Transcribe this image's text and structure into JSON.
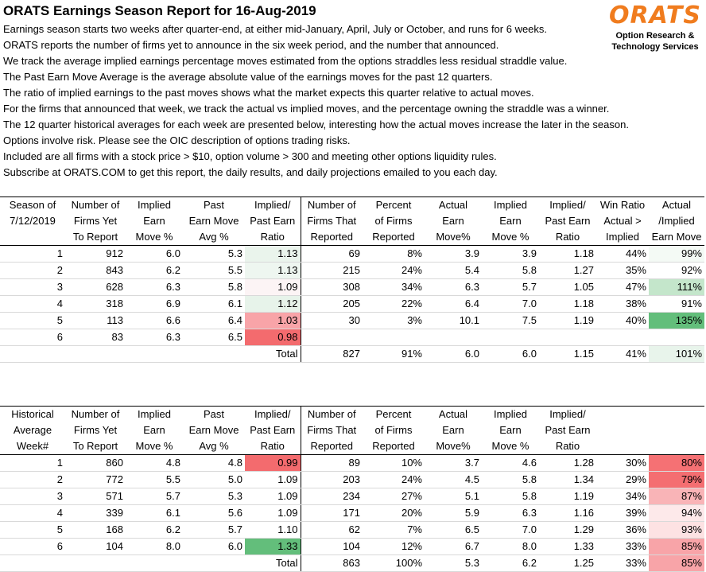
{
  "report": {
    "title": "ORATS Earnings Season Report for 16-Aug-2019",
    "intro": [
      "Earnings season starts two weeks after quarter-end, at either mid-January, April, July or October, and runs for 6 weeks.",
      "ORATS reports the number of firms yet to announce in the six week period, and the number that announced.",
      "We track the average implied earnings percentage moves estimated from the options straddles less residual straddle value.",
      "The Past Earn Move Average is the average absolute value of the earnings moves for the past 12 quarters.",
      "The ratio of implied earnings to the past moves shows what the market expects this quarter relative to actual moves.",
      "For the firms that announced that week, we track the actual vs implied moves, and the percentage owning the straddle was a winner.",
      "The 12 quarter historical averages for each week are presented below, interesting how the actual moves increase the later in the season.",
      "Options involve risk. Please see the OIC description of options trading risks.",
      "Included are all firms with a stock price > $10, option volume > 300 and meeting other options liquidity rules.",
      "Subscribe at ORATS.COM to get this report, the daily results, and daily projections emailed to you each day."
    ]
  },
  "logo": {
    "word": "ORATS",
    "line1": "Option Research &",
    "line2": "Technology Services",
    "color": "#f07c1e"
  },
  "season_table": {
    "headers": [
      [
        "Season of",
        "Number of",
        "Implied",
        "Past",
        "Implied/",
        "Number of",
        "Percent",
        "Actual",
        "Implied",
        "Implied/",
        "Win Ratio",
        "Actual"
      ],
      [
        "7/12/2019",
        "Firms Yet",
        "Earn",
        "Earn Move",
        "Past Earn",
        "Firms That",
        "of Firms",
        "Earn",
        "Earn",
        "Past Earn",
        "Actual >",
        "/Implied"
      ],
      [
        "",
        "To Report",
        "Move %",
        "Avg %",
        "Ratio",
        "Reported",
        "Reported",
        "Move%",
        "Move %",
        "Ratio",
        "Implied",
        "Earn Move"
      ]
    ],
    "rows": [
      [
        "1",
        "912",
        "6.0",
        "5.3",
        "1.13",
        "69",
        "8%",
        "3.9",
        "3.9",
        "1.18",
        "44%",
        "99%"
      ],
      [
        "2",
        "843",
        "6.2",
        "5.5",
        "1.13",
        "215",
        "24%",
        "5.4",
        "5.8",
        "1.27",
        "35%",
        "92%"
      ],
      [
        "3",
        "628",
        "6.3",
        "5.8",
        "1.09",
        "308",
        "34%",
        "6.3",
        "5.7",
        "1.05",
        "47%",
        "111%"
      ],
      [
        "4",
        "318",
        "6.9",
        "6.1",
        "1.12",
        "205",
        "22%",
        "6.4",
        "7.0",
        "1.18",
        "38%",
        "91%"
      ],
      [
        "5",
        "113",
        "6.6",
        "6.4",
        "1.03",
        "30",
        "3%",
        "10.1",
        "7.5",
        "1.19",
        "40%",
        "135%"
      ],
      [
        "6",
        "83",
        "6.3",
        "6.5",
        "0.98",
        "",
        "",
        "",
        "",
        "",
        "",
        ""
      ],
      [
        "",
        "",
        "",
        "",
        "Total",
        "827",
        "91%",
        "6.0",
        "6.0",
        "1.15",
        "41%",
        "101%"
      ]
    ],
    "ratio_colors": [
      "#eaf4ec",
      "#eef6f0",
      "#fcf4f5",
      "#e7f3ea",
      "#f8a4a8",
      "#f36b6e"
    ],
    "actual_colors": [
      "#f4faf5",
      "#ffffff",
      "#c4e6cb",
      "#ffffff",
      "#63be7b",
      "",
      "#e8f4eb"
    ]
  },
  "historical_table": {
    "headers": [
      [
        "Historical",
        "Number of",
        "Implied",
        "Past",
        "Implied/",
        "Number of",
        "Percent",
        "Actual",
        "Implied",
        "Implied/",
        "",
        ""
      ],
      [
        "Average",
        "Firms Yet",
        "Earn",
        "Earn Move",
        "Past Earn",
        "Firms That",
        "of Firms",
        "Earn",
        "Earn",
        "Past Earn",
        "",
        ""
      ],
      [
        "Week#",
        "To Report",
        "Move %",
        "Avg %",
        "Ratio",
        "Reported",
        "Reported",
        "Move%",
        "Move %",
        "Ratio",
        "",
        ""
      ]
    ],
    "rows": [
      [
        "1",
        "860",
        "4.8",
        "4.8",
        "0.99",
        "89",
        "10%",
        "3.7",
        "4.6",
        "1.28",
        "30%",
        "80%"
      ],
      [
        "2",
        "772",
        "5.5",
        "5.0",
        "1.09",
        "203",
        "24%",
        "4.5",
        "5.8",
        "1.34",
        "29%",
        "79%"
      ],
      [
        "3",
        "571",
        "5.7",
        "5.3",
        "1.09",
        "234",
        "27%",
        "5.1",
        "5.8",
        "1.19",
        "34%",
        "87%"
      ],
      [
        "4",
        "339",
        "6.1",
        "5.6",
        "1.09",
        "171",
        "20%",
        "5.9",
        "6.3",
        "1.16",
        "39%",
        "94%"
      ],
      [
        "5",
        "168",
        "6.2",
        "5.7",
        "1.10",
        "62",
        "7%",
        "6.5",
        "7.0",
        "1.29",
        "36%",
        "93%"
      ],
      [
        "6",
        "104",
        "8.0",
        "6.0",
        "1.33",
        "104",
        "12%",
        "6.7",
        "8.0",
        "1.33",
        "33%",
        "85%"
      ],
      [
        "",
        "",
        "",
        "",
        "Total",
        "863",
        "100%",
        "5.3",
        "6.2",
        "1.25",
        "33%",
        "85%"
      ]
    ],
    "ratio_colors": [
      "#f36b6e",
      "#ffffff",
      "#ffffff",
      "#ffffff",
      "#ffffff",
      "#63be7b"
    ],
    "actual_colors": [
      "#f57174",
      "#f46e71",
      "#f9b4b7",
      "#fde9ea",
      "#fde2e3",
      "#f8a4a8",
      "#f8a4a8"
    ]
  }
}
